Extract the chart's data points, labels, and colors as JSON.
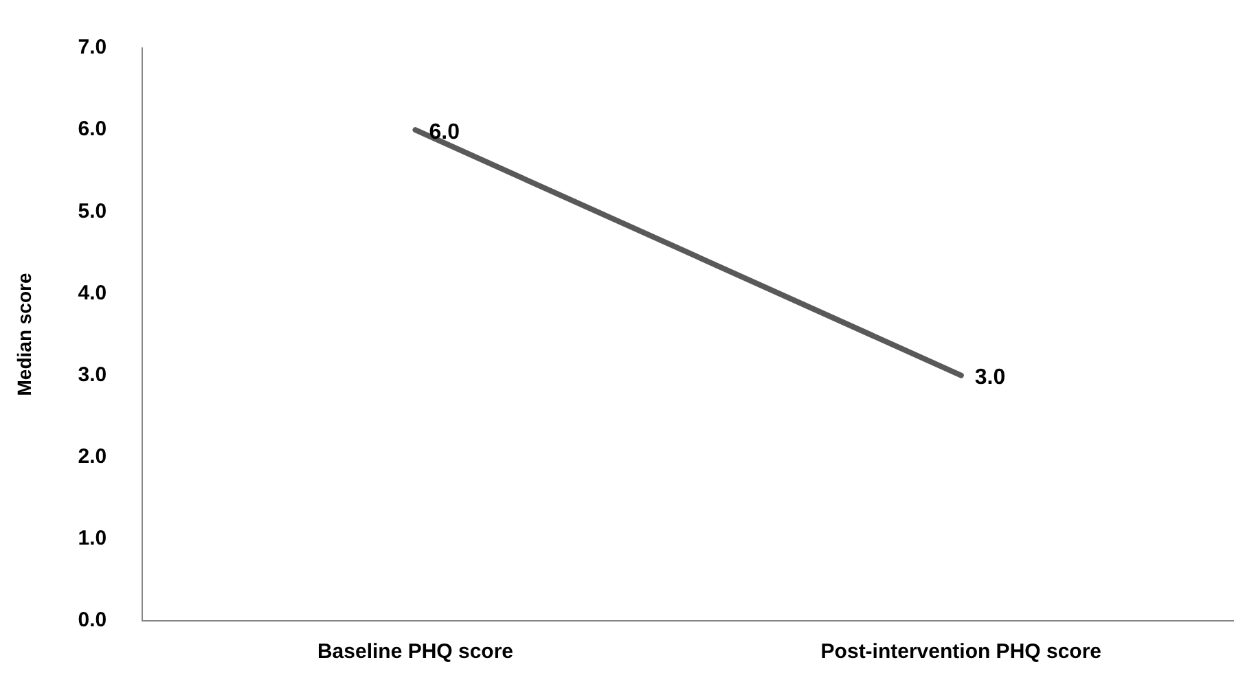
{
  "chart_data": {
    "type": "line",
    "ylabel": "Median score",
    "categories": [
      "Baseline PHQ score",
      "Post-intervention PHQ score"
    ],
    "series": [
      {
        "color": "#595959",
        "values": [
          6.0,
          3.0
        ],
        "value_labels": [
          "6.0",
          "3.0"
        ]
      }
    ],
    "ylim": [
      0,
      7
    ],
    "yticks": [
      {
        "value": 0,
        "label": "0.0"
      },
      {
        "value": 1,
        "label": "1.0"
      },
      {
        "value": 2,
        "label": "2.0"
      },
      {
        "value": 3,
        "label": "3.0"
      },
      {
        "value": 4,
        "label": "4.0"
      },
      {
        "value": 5,
        "label": "5.0"
      },
      {
        "value": 6,
        "label": "6.0"
      },
      {
        "value": 7,
        "label": "7.0"
      }
    ],
    "grid": false,
    "legend": false,
    "marker": "none",
    "line_style": "solid"
  }
}
